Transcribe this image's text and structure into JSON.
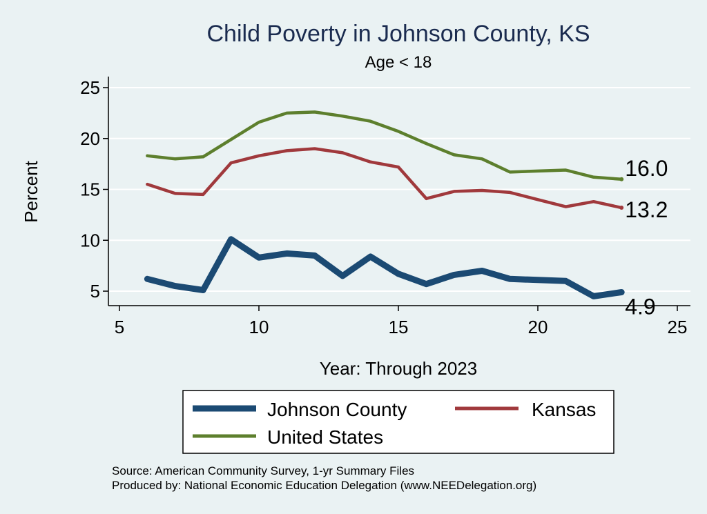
{
  "chart_data": {
    "type": "line",
    "title": "Child Poverty in Johnson County, KS",
    "subtitle": "Age < 18",
    "xlabel": "Year: Through 2023",
    "ylabel": "Percent",
    "xlim": [
      5,
      25
    ],
    "ylim": [
      4,
      26
    ],
    "xticks": [
      5,
      10,
      15,
      20,
      25
    ],
    "yticks": [
      5,
      10,
      15,
      20,
      25
    ],
    "grid": true,
    "legend_position": "bottom",
    "series": [
      {
        "name": "Johnson County",
        "color": "#1b4a73",
        "x": [
          6,
          7,
          8,
          9,
          10,
          11,
          12,
          13,
          14,
          15,
          16,
          17,
          18,
          19,
          20,
          21,
          22,
          23
        ],
        "y": [
          6.2,
          5.5,
          5.1,
          10.1,
          8.3,
          8.7,
          8.5,
          6.5,
          8.4,
          6.7,
          5.7,
          6.6,
          7.0,
          6.2,
          6.1,
          6.0,
          4.5,
          4.9
        ],
        "end_label": "4.9"
      },
      {
        "name": "Kansas",
        "color": "#a0393c",
        "x": [
          6,
          7,
          8,
          9,
          10,
          11,
          12,
          13,
          14,
          15,
          16,
          17,
          18,
          19,
          20,
          21,
          22,
          23
        ],
        "y": [
          15.5,
          14.6,
          14.5,
          17.6,
          18.3,
          18.8,
          19.0,
          18.6,
          17.7,
          17.2,
          14.1,
          14.8,
          14.9,
          14.7,
          14.0,
          13.3,
          13.8,
          13.2
        ],
        "end_label": "13.2"
      },
      {
        "name": "United States",
        "color": "#5d7f2d",
        "x": [
          6,
          7,
          8,
          9,
          10,
          11,
          12,
          13,
          14,
          15,
          16,
          17,
          18,
          19,
          20,
          21,
          22,
          23
        ],
        "y": [
          18.3,
          18.0,
          18.2,
          19.9,
          21.6,
          22.5,
          22.6,
          22.2,
          21.7,
          20.7,
          19.5,
          18.4,
          18.0,
          16.7,
          16.8,
          16.9,
          16.2,
          16.0
        ],
        "end_label": "16.0"
      }
    ],
    "notes": [
      "Source: American Community Survey, 1-yr Summary Files",
      "Produced by: National Economic Education Delegation (www.NEEDelegation.org)"
    ]
  }
}
